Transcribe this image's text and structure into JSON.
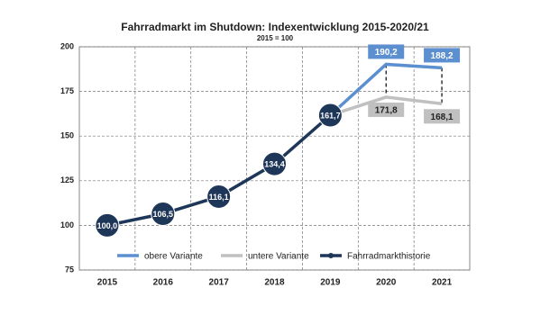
{
  "chart_data": {
    "type": "line",
    "title": "Fahrradmarkt im Shutdown: Indexentwicklung 2015-2020/21",
    "subtitle": "2015 = 100",
    "categories": [
      "2015",
      "2016",
      "2017",
      "2018",
      "2019",
      "2020",
      "2021"
    ],
    "series": [
      {
        "name": "obere Variante",
        "color": "#5b8fd0",
        "values": [
          null,
          null,
          null,
          null,
          161.7,
          190.2,
          188.2
        ],
        "value_labels": [
          null,
          null,
          null,
          null,
          null,
          "190,2",
          "188,2"
        ]
      },
      {
        "name": "untere Variante",
        "color": "#c0c0c0",
        "values": [
          null,
          null,
          null,
          null,
          161.7,
          171.8,
          168.1
        ],
        "value_labels": [
          null,
          null,
          null,
          null,
          null,
          "171,8",
          "168,1"
        ]
      },
      {
        "name": "Fahrradmarkthistorie",
        "color": "#1e3658",
        "values": [
          100.0,
          106.5,
          116.1,
          134.4,
          161.7,
          null,
          null
        ],
        "value_labels": [
          "100,0",
          "106,5",
          "116,1",
          "134,4",
          "161,7",
          null,
          null
        ]
      }
    ],
    "ylim": [
      75,
      200
    ],
    "yticks": [
      75,
      100,
      125,
      150,
      175,
      200
    ],
    "grid": true,
    "legend": "bottom"
  }
}
